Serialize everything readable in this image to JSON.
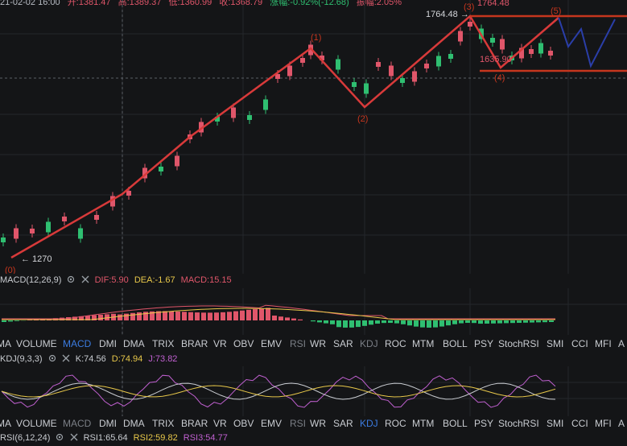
{
  "header": {
    "date": "21-02-02 16:00",
    "open": "开:1381.47",
    "high": "高:1389.37",
    "low": "低:1360.99",
    "close": "收:1368.79",
    "change": "涨幅:-0.92%(-12.68)",
    "amplitude": "振幅:2.05%"
  },
  "main_chart": {
    "annotations": {
      "low_price": "← 1270",
      "high_price": "1764.48 →",
      "high_price_right": "1764.48",
      "mid_price": "1635.90",
      "wave_0": "(0)",
      "wave_1": "(1)",
      "wave_2": "(2)",
      "wave_3": "(3)",
      "wave_4": "(4)",
      "wave_5": "(5)"
    },
    "colors": {
      "up": "#e0566a",
      "down": "#2fbf71",
      "wave": "#d83a3a",
      "projection": "#2a3ea8",
      "level": "#c6361e"
    }
  },
  "macd_panel": {
    "name": "MACD(12,26,9)",
    "dif": "DIF:5.90",
    "dea": "DEA:-1.67",
    "macd": "MACD:15.15"
  },
  "tabs_1": [
    "MA",
    "VOLUME",
    "MACD",
    "DMI",
    "DMA",
    "TRIX",
    "BRAR",
    "VR",
    "OBV",
    "EMV",
    "RSI",
    "WR",
    "SAR",
    "KDJ",
    "ROC",
    "MTM",
    "BOLL",
    "PSY",
    "StochRSI",
    "SMI",
    "CCI",
    "MFI",
    "A"
  ],
  "tabs_1_active": "MACD",
  "kdj_panel": {
    "name": "KDJ(9,3,3)",
    "k": "K:74.56",
    "d": "D:74.94",
    "j": "J:73.82"
  },
  "tabs_2": [
    "MA",
    "VOLUME",
    "MACD",
    "DMI",
    "DMA",
    "TRIX",
    "BRAR",
    "VR",
    "OBV",
    "EMV",
    "RSI",
    "WR",
    "SAR",
    "KDJ",
    "ROC",
    "MTM",
    "BOLL",
    "PSY",
    "StochRSI",
    "SMI",
    "CCI",
    "MFI",
    "A"
  ],
  "tabs_2_active": "KDJ",
  "rsi_panel": {
    "name": "RSI(6,12,24)",
    "rsi1": "RSI1:65.64",
    "rsi2": "RSI2:59.82",
    "rsi3": "RSI3:54.77"
  }
}
